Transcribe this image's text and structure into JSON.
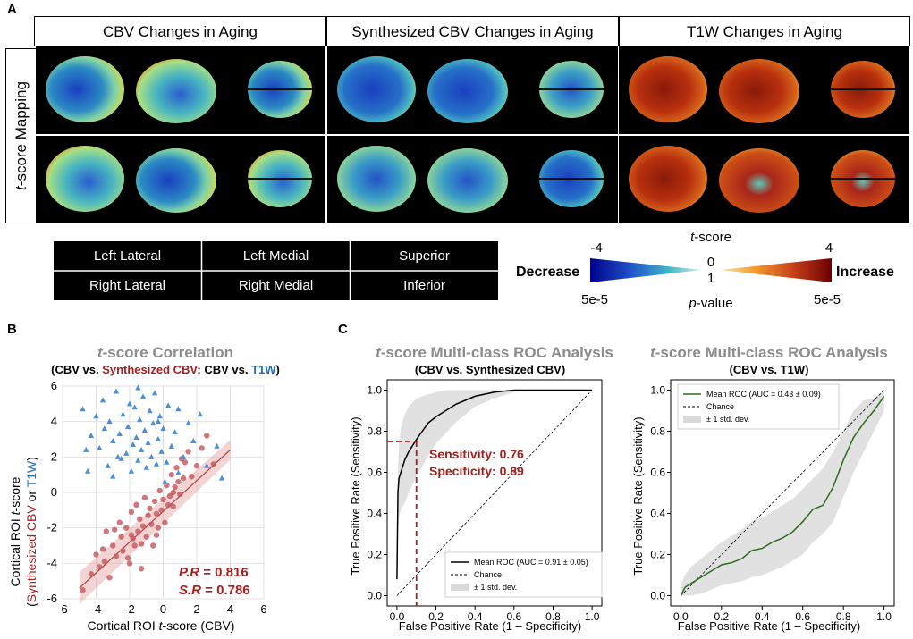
{
  "panel_a": {
    "letter": "A",
    "columns": [
      "CBV Changes in Aging",
      "Synthesized CBV Changes in Aging",
      "T1W Changes in Aging"
    ],
    "row_label_italic": "t",
    "row_label_rest": "-score Mapping",
    "view_table": [
      [
        "Left Lateral",
        "Left Medial",
        "Superior"
      ],
      [
        "Right Lateral",
        "Right Medial",
        "Inferior"
      ]
    ],
    "colorbar": {
      "title_italic": "t",
      "title_rest": "-score",
      "left_val": "-4",
      "right_val": "4",
      "center_top": "0",
      "center_bottom": "1",
      "left_p": "5e-5",
      "right_p": "5e-5",
      "decrease": "Decrease",
      "increase": "Increase",
      "pvalue_italic": "p",
      "pvalue_rest": "-value",
      "colors": [
        "#00008b",
        "#1f4fc8",
        "#3fb6c8",
        "#bfe9d8",
        "#f4c030",
        "#d8521a",
        "#6b0000"
      ]
    }
  },
  "panel_b": {
    "letter": "B",
    "title_italic": "t",
    "title_rest": "-score Correlation",
    "subtitle_parts": [
      {
        "text": "(CBV vs. ",
        "color": "#000000"
      },
      {
        "text": "Synthesized CBV",
        "color": "#a51f1f"
      },
      {
        "text": "; CBV vs. ",
        "color": "#000000"
      },
      {
        "text": "T1W",
        "color": "#1f6fc0"
      },
      {
        "text": ")",
        "color": "#000000"
      }
    ],
    "ylabel_line1_pre": "Cortical ROI ",
    "ylabel_line1_italic": "t",
    "ylabel_line1_post": "-score",
    "ylabel_line2_parts": [
      {
        "text": "(",
        "color": "#000000"
      },
      {
        "text": "Synthesized CBV",
        "color": "#a51f1f"
      },
      {
        "text": " or ",
        "color": "#000000"
      },
      {
        "text": "T1W",
        "color": "#1f6fc0"
      },
      {
        "text": ")",
        "color": "#000000"
      }
    ],
    "xlabel_pre": "Cortical ROI ",
    "xlabel_italic": "t",
    "xlabel_post": "-score (CBV)",
    "pr_label": "P.R",
    "pr_value": " = 0.816",
    "sr_label": "S.R",
    "sr_value": " = 0.786"
  },
  "panel_c": {
    "letter": "C",
    "roc1": {
      "title_italic": "t",
      "title_rest": "-score Multi-class ROC Analysis",
      "subtitle": "(CBV vs. Synthesized CBV)",
      "ylabel": "True Positive Rate (Sensitivity)",
      "xlabel": "False Positive Rate (1 – Specificity)",
      "sensitivity": "Sensitivity: 0.76",
      "specificity": "Specificity: 0.89",
      "legend": [
        "Mean ROC (AUC = 0.91 ± 0.05)",
        "Chance",
        "± 1 std. dev."
      ]
    },
    "roc2": {
      "title_italic": "t",
      "title_rest": "-score Multi-class ROC Analysis",
      "subtitle": "(CBV vs. T1W)",
      "ylabel": "True Positive Rate (Sensitivity)",
      "xlabel": "False Positive Rate (1 – Specificity)",
      "legend": [
        "Mean ROC (AUC = 0.43 ± 0.09)",
        "Chance",
        "± 1 std. dev."
      ]
    }
  },
  "chart_data": [
    {
      "type": "scatter",
      "title": "t-score Correlation",
      "xlabel": "Cortical ROI t-score (CBV)",
      "ylabel": "Cortical ROI t-score (Synthesized CBV or T1W)",
      "xlim": [
        -6,
        6
      ],
      "ylim": [
        -6,
        6
      ],
      "xticks": [
        -6,
        -4,
        -2,
        0,
        2,
        4,
        6
      ],
      "yticks": [
        -6,
        -4,
        -2,
        0,
        2,
        4,
        6
      ],
      "grid": true,
      "series": [
        {
          "name": "Synthesized CBV",
          "color": "#c0565a",
          "marker": "circle",
          "points": [
            [
              -4.8,
              -5.5
            ],
            [
              -4.3,
              -4.6
            ],
            [
              -4.0,
              -3.5
            ],
            [
              -3.8,
              -4.2
            ],
            [
              -3.5,
              -3.9
            ],
            [
              -3.4,
              -2.2
            ],
            [
              -3.2,
              -4.8
            ],
            [
              -3.0,
              -3.0
            ],
            [
              -2.8,
              -3.6
            ],
            [
              -2.6,
              -1.7
            ],
            [
              -2.5,
              -2.5
            ],
            [
              -2.4,
              -3.3
            ],
            [
              -2.2,
              -2.0
            ],
            [
              -2.0,
              -4.0
            ],
            [
              -1.9,
              -1.1
            ],
            [
              -1.8,
              -2.6
            ],
            [
              -1.7,
              -3.0
            ],
            [
              -1.6,
              -0.7
            ],
            [
              -1.5,
              -2.2
            ],
            [
              -1.4,
              -1.5
            ],
            [
              -1.3,
              -2.9
            ],
            [
              -1.2,
              -1.9
            ],
            [
              -1.1,
              -0.3
            ],
            [
              -1.0,
              -2.5
            ],
            [
              -0.9,
              -1.3
            ],
            [
              -0.8,
              -0.9
            ],
            [
              -0.7,
              -1.8
            ],
            [
              -0.6,
              -3.0
            ],
            [
              -0.5,
              -0.5
            ],
            [
              -0.4,
              -1.2
            ],
            [
              -0.3,
              -2.0
            ],
            [
              -0.2,
              0.1
            ],
            [
              -0.1,
              -1.0
            ],
            [
              0.0,
              -0.4
            ],
            [
              0.1,
              -1.7
            ],
            [
              0.2,
              0.4
            ],
            [
              0.3,
              -0.7
            ],
            [
              0.4,
              -0.2
            ],
            [
              0.5,
              1.0
            ],
            [
              0.6,
              -0.8
            ],
            [
              0.7,
              0.3
            ],
            [
              0.8,
              1.4
            ],
            [
              0.9,
              0.6
            ],
            [
              1.0,
              -0.1
            ],
            [
              1.1,
              1.9
            ],
            [
              1.2,
              0.8
            ],
            [
              1.3,
              1.7
            ],
            [
              1.5,
              2.3
            ],
            [
              1.7,
              0.9
            ],
            [
              2.0,
              1.5
            ],
            [
              2.3,
              2.5
            ],
            [
              2.6,
              3.2
            ],
            [
              3.0,
              1.6
            ],
            [
              -2.9,
              -2.1
            ],
            [
              -2.1,
              -3.7
            ],
            [
              -1.3,
              -4.3
            ],
            [
              -0.4,
              -2.4
            ],
            [
              0.6,
              0.0
            ],
            [
              -3.6,
              -3.2
            ],
            [
              -1.9,
              -2.4
            ]
          ]
        },
        {
          "name": "T1W",
          "color": "#4a90d9",
          "marker": "triangle",
          "points": [
            [
              -4.8,
              4.7
            ],
            [
              -4.5,
              1.2
            ],
            [
              -4.3,
              3.2
            ],
            [
              -4.0,
              4.3
            ],
            [
              -3.8,
              2.5
            ],
            [
              -3.6,
              5.2
            ],
            [
              -3.5,
              3.6
            ],
            [
              -3.3,
              1.5
            ],
            [
              -3.2,
              4.0
            ],
            [
              -3.0,
              2.9
            ],
            [
              -2.8,
              5.7
            ],
            [
              -2.6,
              3.3
            ],
            [
              -2.5,
              1.9
            ],
            [
              -2.4,
              4.4
            ],
            [
              -2.2,
              2.2
            ],
            [
              -2.1,
              3.7
            ],
            [
              -2.0,
              5.0
            ],
            [
              -1.9,
              1.2
            ],
            [
              -1.8,
              2.7
            ],
            [
              -1.7,
              4.8
            ],
            [
              -1.6,
              3.1
            ],
            [
              -1.5,
              1.8
            ],
            [
              -1.4,
              4.1
            ],
            [
              -1.3,
              2.4
            ],
            [
              -1.2,
              5.4
            ],
            [
              -1.1,
              3.5
            ],
            [
              -1.0,
              1.4
            ],
            [
              -0.9,
              2.8
            ],
            [
              -0.8,
              4.6
            ],
            [
              -0.7,
              2.0
            ],
            [
              -0.6,
              3.9
            ],
            [
              -0.5,
              5.6
            ],
            [
              -0.4,
              1.6
            ],
            [
              -0.3,
              3.0
            ],
            [
              -0.2,
              4.3
            ],
            [
              -0.1,
              2.3
            ],
            [
              0.0,
              3.6
            ],
            [
              0.2,
              1.7
            ],
            [
              0.3,
              4.9
            ],
            [
              0.5,
              2.6
            ],
            [
              0.7,
              3.4
            ],
            [
              0.9,
              1.1
            ],
            [
              1.2,
              2.0
            ],
            [
              1.5,
              3.9
            ],
            [
              1.8,
              2.9
            ],
            [
              2.2,
              4.4
            ],
            [
              2.6,
              1.5
            ],
            [
              3.2,
              2.6
            ],
            [
              3.5,
              0.8
            ],
            [
              -4.6,
              2.4
            ],
            [
              -3.0,
              0.9
            ],
            [
              -1.5,
              5.9
            ],
            [
              0.1,
              0.6
            ],
            [
              0.9,
              4.7
            ],
            [
              -2.7,
              2.0
            ],
            [
              -0.3,
              4.0
            ]
          ]
        }
      ],
      "fit_line": {
        "x": [
          -5,
          4
        ],
        "y": [
          -5.4,
          2.4
        ]
      },
      "annotations": [
        "P.R = 0.816",
        "S.R = 0.786"
      ]
    },
    {
      "type": "line",
      "title": "t-score Multi-class ROC Analysis (CBV vs. Synthesized CBV)",
      "xlabel": "False Positive Rate (1 – Specificity)",
      "ylabel": "True Positive Rate (Sensitivity)",
      "xlim": [
        -0.05,
        1.05
      ],
      "ylim": [
        -0.05,
        1.05
      ],
      "xticks": [
        0.0,
        0.2,
        0.4,
        0.6,
        0.8,
        1.0
      ],
      "yticks": [
        0.0,
        0.2,
        0.4,
        0.6,
        0.8,
        1.0
      ],
      "series": [
        {
          "name": "Mean ROC (AUC = 0.91 ± 0.05)",
          "color": "#000000",
          "x": [
            0,
            0.005,
            0.01,
            0.02,
            0.04,
            0.06,
            0.08,
            0.1,
            0.13,
            0.16,
            0.2,
            0.25,
            0.3,
            0.35,
            0.4,
            0.5,
            0.6,
            0.7,
            0.8,
            0.9,
            1.0
          ],
          "y": [
            0.08,
            0.5,
            0.57,
            0.6,
            0.66,
            0.7,
            0.73,
            0.76,
            0.8,
            0.84,
            0.87,
            0.9,
            0.93,
            0.95,
            0.97,
            0.99,
            1.0,
            1.0,
            1.0,
            1.0,
            1.0
          ],
          "upper": [
            0.3,
            0.62,
            0.72,
            0.82,
            0.88,
            0.92,
            0.94,
            0.96,
            0.97,
            0.98,
            0.99,
            1.0,
            1.0,
            1.0,
            1.0,
            1.0,
            1.0,
            1.0,
            1.0,
            1.0,
            1.0
          ],
          "lower": [
            0,
            0.3,
            0.38,
            0.42,
            0.45,
            0.5,
            0.54,
            0.58,
            0.63,
            0.68,
            0.74,
            0.79,
            0.84,
            0.88,
            0.92,
            0.96,
            0.99,
            1.0,
            1.0,
            1.0,
            1.0
          ]
        },
        {
          "name": "Chance",
          "color": "#000000",
          "x": [
            0,
            1
          ],
          "y": [
            0,
            1
          ]
        }
      ],
      "annotations": [
        "Sensitivity: 0.76",
        "Specificity: 0.89"
      ],
      "operating_point": {
        "x": 0.1,
        "y": 0.75
      }
    },
    {
      "type": "line",
      "title": "t-score Multi-class ROC Analysis (CBV vs. T1W)",
      "xlabel": "False Positive Rate (1 – Specificity)",
      "ylabel": "True Positive Rate (Sensitivity)",
      "xlim": [
        -0.05,
        1.05
      ],
      "ylim": [
        -0.05,
        1.05
      ],
      "xticks": [
        0.0,
        0.2,
        0.4,
        0.6,
        0.8,
        1.0
      ],
      "yticks": [
        0.0,
        0.2,
        0.4,
        0.6,
        0.8,
        1.0
      ],
      "series": [
        {
          "name": "Mean ROC (AUC = 0.43 ± 0.09)",
          "color": "#2e6b1e",
          "x": [
            0,
            0.02,
            0.05,
            0.1,
            0.15,
            0.2,
            0.25,
            0.3,
            0.35,
            0.4,
            0.45,
            0.5,
            0.55,
            0.6,
            0.65,
            0.7,
            0.75,
            0.8,
            0.85,
            0.9,
            0.95,
            1.0
          ],
          "y": [
            0,
            0.04,
            0.06,
            0.09,
            0.12,
            0.15,
            0.16,
            0.18,
            0.22,
            0.23,
            0.26,
            0.28,
            0.31,
            0.36,
            0.42,
            0.44,
            0.53,
            0.66,
            0.77,
            0.84,
            0.9,
            0.97
          ],
          "upper": [
            0.05,
            0.1,
            0.14,
            0.18,
            0.22,
            0.26,
            0.29,
            0.32,
            0.36,
            0.38,
            0.41,
            0.44,
            0.47,
            0.52,
            0.57,
            0.62,
            0.7,
            0.8,
            0.9,
            0.95,
            0.96,
            1.0
          ],
          "lower": [
            0,
            0,
            0,
            0.01,
            0.03,
            0.05,
            0.06,
            0.07,
            0.09,
            0.1,
            0.12,
            0.14,
            0.17,
            0.2,
            0.26,
            0.3,
            0.36,
            0.48,
            0.6,
            0.7,
            0.8,
            0.9
          ]
        },
        {
          "name": "Chance",
          "color": "#000000",
          "x": [
            0,
            1
          ],
          "y": [
            0,
            1
          ]
        }
      ]
    }
  ]
}
